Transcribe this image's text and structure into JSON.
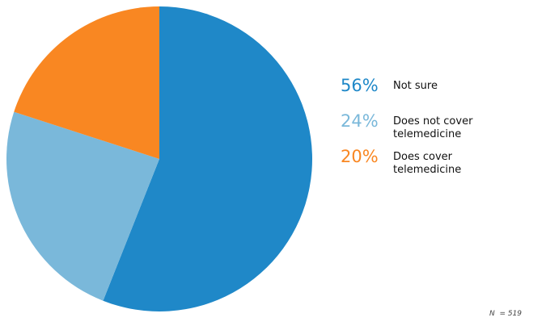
{
  "chart_data": {
    "type": "pie",
    "categories": [
      "Not sure",
      "Does not cover telemedicine",
      "Does cover telemedicine"
    ],
    "values": [
      56,
      24,
      20
    ],
    "value_labels": [
      "56%",
      "24%",
      "20%"
    ],
    "colors": [
      "#1f88c8",
      "#7ab8da",
      "#f98722"
    ],
    "note": "N  = 519"
  }
}
